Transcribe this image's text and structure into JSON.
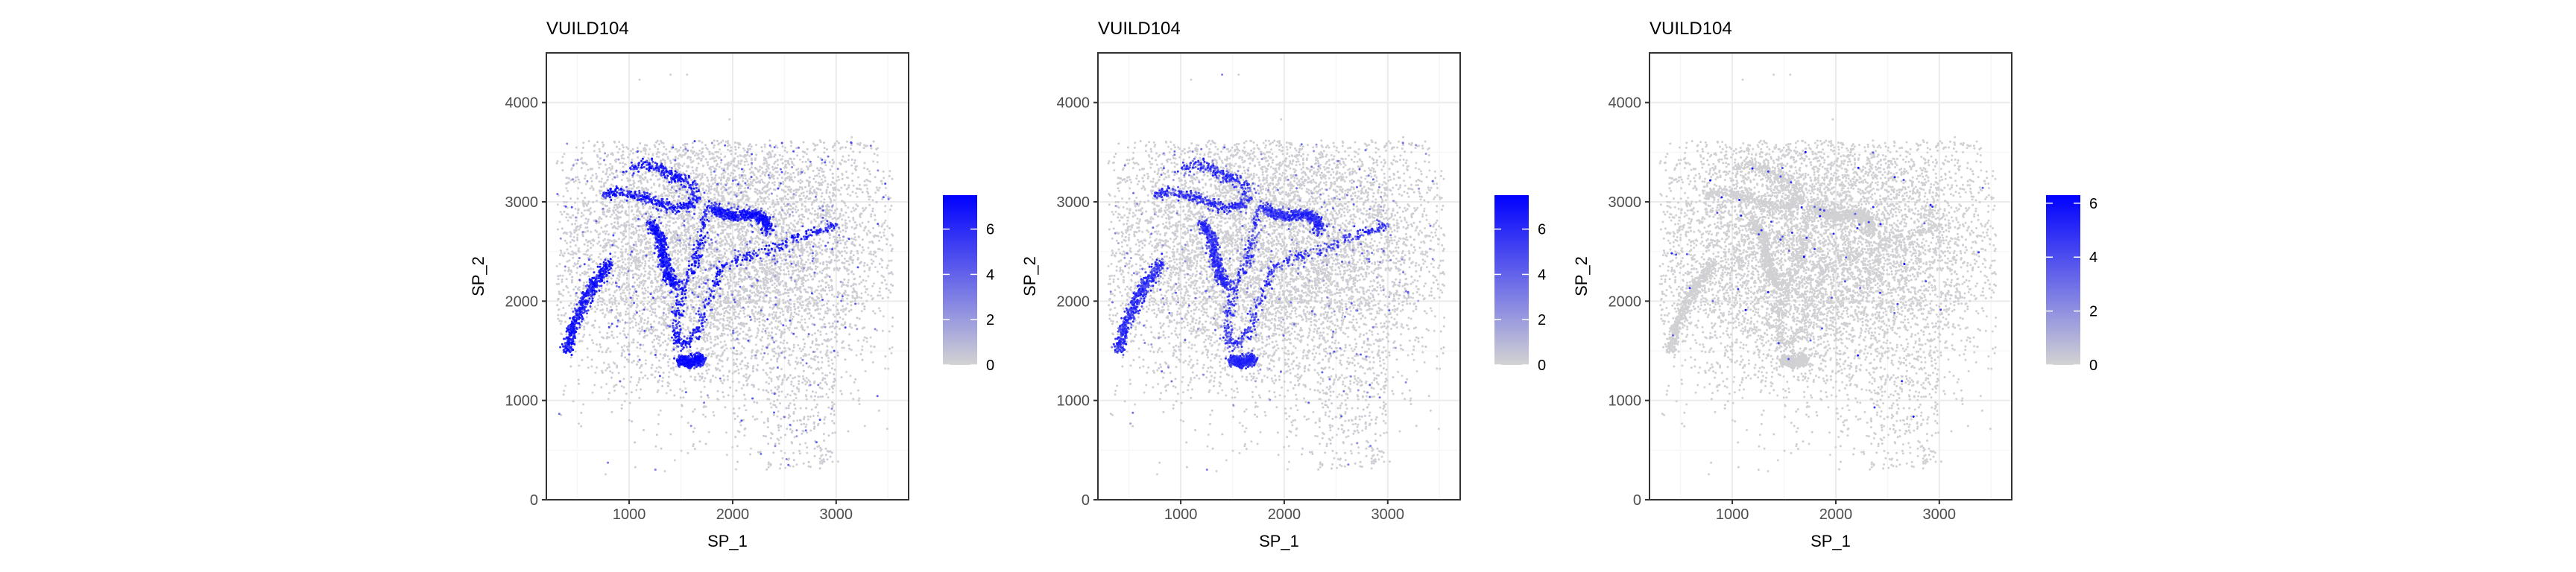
{
  "colors": {
    "low": "#d3d3d3",
    "high": "#0000ff",
    "panel_border": "#333333",
    "grid_major": "#ebebeb",
    "grid_minor": "#f5f5f5",
    "tick_label": "#4d4d4d"
  },
  "chart_data": [
    {
      "type": "scatter",
      "title": "VUILD104",
      "xlabel": "SP_1",
      "ylabel": "SP_2",
      "xlim": [
        200,
        3700
      ],
      "ylim": [
        0,
        4500
      ],
      "x_ticks": [
        1000,
        2000,
        3000
      ],
      "x_tick_labels": [
        "1000",
        "2000",
        "3000"
      ],
      "y_ticks": [
        0,
        1000,
        2000,
        3000,
        4000
      ],
      "y_tick_labels": [
        "0",
        "1000",
        "2000",
        "3000",
        "4000"
      ],
      "grid": true,
      "legend": {
        "position": "right",
        "min": 0,
        "max": 7.5,
        "ticks": [
          0,
          2,
          4,
          6
        ],
        "tick_labels": [
          "0",
          "2",
          "4",
          "6"
        ]
      },
      "expression_pattern": "strong signal along curved tissue bands"
    },
    {
      "type": "scatter",
      "title": "VUILD104",
      "xlabel": "SP_1",
      "ylabel": "SP_2",
      "xlim": [
        200,
        3700
      ],
      "ylim": [
        0,
        4500
      ],
      "x_ticks": [
        1000,
        2000,
        3000
      ],
      "x_tick_labels": [
        "1000",
        "2000",
        "3000"
      ],
      "y_ticks": [
        0,
        1000,
        2000,
        3000,
        4000
      ],
      "y_tick_labels": [
        "0",
        "1000",
        "2000",
        "3000",
        "4000"
      ],
      "grid": true,
      "legend": {
        "position": "right",
        "min": 0,
        "max": 7.5,
        "ticks": [
          0,
          2,
          4,
          6
        ],
        "tick_labels": [
          "0",
          "2",
          "4",
          "6"
        ]
      },
      "expression_pattern": "moderate signal along curved tissue bands"
    },
    {
      "type": "scatter",
      "title": "VUILD104",
      "xlabel": "SP_1",
      "ylabel": "SP_2",
      "xlim": [
        200,
        3700
      ],
      "ylim": [
        0,
        4500
      ],
      "x_ticks": [
        1000,
        2000,
        3000
      ],
      "x_tick_labels": [
        "1000",
        "2000",
        "3000"
      ],
      "y_ticks": [
        0,
        1000,
        2000,
        3000,
        4000
      ],
      "y_tick_labels": [
        "0",
        "1000",
        "2000",
        "3000",
        "4000"
      ],
      "grid": true,
      "legend": {
        "position": "right",
        "min": 0,
        "max": 6.3,
        "ticks": [
          0,
          2,
          4,
          6
        ],
        "tick_labels": [
          "0",
          "2",
          "4",
          "6"
        ]
      },
      "expression_pattern": "sparse isolated high cells"
    }
  ]
}
